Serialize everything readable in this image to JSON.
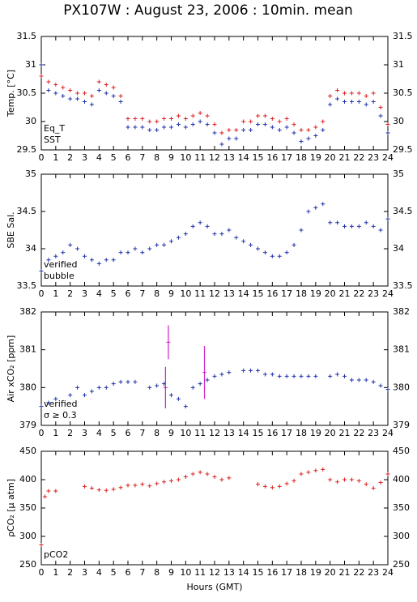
{
  "title": "PX107W : August 23, 2006 : 10min. mean",
  "chart_data": [
    {
      "type": "scatter",
      "ylabel": "Temp. [°C]",
      "xlim": [
        0,
        24
      ],
      "xticks": [
        0,
        1,
        2,
        3,
        4,
        5,
        6,
        7,
        8,
        9,
        10,
        11,
        12,
        13,
        14,
        15,
        16,
        17,
        18,
        19,
        20,
        21,
        22,
        23,
        24
      ],
      "ylim": [
        29.5,
        31.5
      ],
      "yticks": [
        29.5,
        30,
        30.5,
        31,
        31.5
      ],
      "series": [
        {
          "name": "Eq_T",
          "color": "#dd2222",
          "x": [
            0,
            0.5,
            1,
            1.5,
            2,
            2.5,
            3,
            3.5,
            4,
            4.5,
            5,
            5.5,
            6,
            6.5,
            7,
            7.5,
            8,
            8.5,
            9,
            9.5,
            10,
            10.5,
            11,
            11.5,
            12,
            12.5,
            13,
            13.5,
            14,
            14.5,
            15,
            15.5,
            16,
            16.5,
            17,
            17.5,
            18,
            18.5,
            19,
            19.5,
            20,
            20.5,
            21,
            21.5,
            22,
            22.5,
            23,
            23.5,
            24
          ],
          "values": [
            30.8,
            30.7,
            30.65,
            30.6,
            30.55,
            30.5,
            30.5,
            30.45,
            30.7,
            30.65,
            30.6,
            30.45,
            30.05,
            30.05,
            30.05,
            30,
            30,
            30.05,
            30.05,
            30.1,
            30.05,
            30.1,
            30.15,
            30.1,
            29.95,
            29.8,
            29.85,
            29.85,
            30,
            30,
            30.1,
            30.1,
            30.05,
            30,
            30.05,
            29.95,
            29.85,
            29.85,
            29.9,
            30,
            30.45,
            30.55,
            30.5,
            30.5,
            30.5,
            30.45,
            30.5,
            30.25,
            29.95
          ]
        },
        {
          "name": "SST",
          "color": "#2233aa",
          "x": [
            0,
            0.5,
            1,
            1.5,
            2,
            2.5,
            3,
            3.5,
            4,
            4.5,
            5,
            5.5,
            6,
            6.5,
            7,
            7.5,
            8,
            8.5,
            9,
            9.5,
            10,
            10.5,
            11,
            11.5,
            12,
            12.5,
            13,
            13.5,
            14,
            14.5,
            15,
            15.5,
            16,
            16.5,
            17,
            17.5,
            18,
            18.5,
            19,
            19.5,
            20,
            20.5,
            21,
            21.5,
            22,
            22.5,
            23,
            23.5,
            24
          ],
          "values": [
            31,
            30.55,
            30.5,
            30.45,
            30.4,
            30.4,
            30.35,
            30.3,
            30.55,
            30.5,
            30.45,
            30.35,
            29.9,
            29.9,
            29.9,
            29.85,
            29.85,
            29.9,
            29.9,
            29.95,
            29.9,
            29.95,
            30,
            29.95,
            29.8,
            29.6,
            29.7,
            29.7,
            29.85,
            29.85,
            29.95,
            29.95,
            29.9,
            29.85,
            29.9,
            29.8,
            29.65,
            29.7,
            29.75,
            29.85,
            30.3,
            30.4,
            30.35,
            30.35,
            30.35,
            30.3,
            30.35,
            30.1,
            29.8
          ]
        }
      ]
    },
    {
      "type": "scatter",
      "ylabel": "SBE Sal.",
      "xlim": [
        0,
        24
      ],
      "xticks": [
        0,
        1,
        2,
        3,
        4,
        5,
        6,
        7,
        8,
        9,
        10,
        11,
        12,
        13,
        14,
        15,
        16,
        17,
        18,
        19,
        20,
        21,
        22,
        23,
        24
      ],
      "ylim": [
        33.5,
        35
      ],
      "yticks": [
        33.5,
        34,
        34.5,
        35
      ],
      "series": [
        {
          "name": "verified",
          "color": "#2233aa",
          "x": [
            0,
            0.5,
            1,
            1.5,
            2,
            2.5,
            3,
            3.5,
            4,
            4.5,
            5,
            5.5,
            6,
            6.5,
            7,
            7.5,
            8,
            8.5,
            9,
            9.5,
            10,
            10.5,
            11,
            11.5,
            12,
            12.5,
            13,
            13.5,
            14,
            14.5,
            15,
            15.5,
            16,
            16.5,
            17,
            17.5,
            18,
            18.5,
            19,
            19.5,
            20,
            20.5,
            21,
            21.5,
            22,
            22.5,
            23,
            23.5,
            24
          ],
          "values": [
            33.7,
            33.85,
            33.9,
            33.95,
            34.05,
            34,
            33.9,
            33.85,
            33.8,
            33.85,
            33.85,
            33.95,
            33.95,
            34,
            33.95,
            34,
            34.05,
            34.05,
            34.1,
            34.15,
            34.2,
            34.3,
            34.35,
            34.3,
            34.2,
            34.2,
            34.25,
            34.15,
            34.1,
            34.05,
            34,
            33.95,
            33.9,
            33.9,
            33.95,
            34.05,
            34.25,
            34.5,
            34.55,
            34.6,
            34.35,
            34.35,
            34.3,
            34.3,
            34.3,
            34.35,
            34.3,
            34.25,
            34.4
          ]
        },
        {
          "name": "bubble",
          "color": "#cc22cc",
          "x": [],
          "values": []
        }
      ]
    },
    {
      "type": "scatter",
      "ylabel": "Air xCO₂ [ppm]",
      "xlim": [
        0,
        24
      ],
      "xticks": [
        0,
        1,
        2,
        3,
        4,
        5,
        6,
        7,
        8,
        9,
        10,
        11,
        12,
        13,
        14,
        15,
        16,
        17,
        18,
        19,
        20,
        21,
        22,
        23,
        24
      ],
      "ylim": [
        379,
        382
      ],
      "yticks": [
        379,
        380,
        381,
        382
      ],
      "series": [
        {
          "name": "verified",
          "color": "#2233aa",
          "x": [
            0,
            0.5,
            1,
            1.5,
            2,
            2.5,
            3,
            3.5,
            4,
            4.5,
            5,
            5.5,
            6,
            6.5,
            7,
            7.5,
            8,
            8.5,
            9,
            9.5,
            10,
            10.5,
            11,
            11.5,
            12,
            12.5,
            13,
            13.5,
            14,
            14.5,
            15,
            15.5,
            16,
            16.5,
            17,
            17.5,
            18,
            18.5,
            19,
            19.5,
            20,
            20.5,
            21,
            21.5,
            22,
            22.5,
            23,
            23.5,
            24
          ],
          "values": [
            379.5,
            379.6,
            379.7,
            null,
            379.8,
            380,
            379.8,
            379.9,
            380,
            380,
            380.1,
            380.15,
            380.15,
            380.15,
            null,
            380,
            380.05,
            380.1,
            379.8,
            379.7,
            379.5,
            380,
            380.1,
            380.2,
            380.3,
            380.35,
            380.4,
            null,
            380.45,
            380.45,
            380.45,
            380.35,
            380.35,
            380.3,
            380.3,
            380.3,
            380.3,
            380.3,
            380.3,
            null,
            380.3,
            380.35,
            380.3,
            380.2,
            380.2,
            380.2,
            380.15,
            380.05,
            379.95
          ]
        },
        {
          "name": "σ ≥ 0.3",
          "color": "#cc22cc",
          "x": [
            8.6,
            8.8,
            11.3
          ],
          "values": [
            380,
            381.2,
            380.4
          ],
          "errors": [
            0.55,
            0.45,
            0.7
          ]
        }
      ]
    },
    {
      "type": "scatter",
      "ylabel": "ρCO₂ [μ atm]",
      "xlabel": "Hours (GMT)",
      "xlim": [
        0,
        24
      ],
      "xticks": [
        0,
        1,
        2,
        3,
        4,
        5,
        6,
        7,
        8,
        9,
        10,
        11,
        12,
        13,
        14,
        15,
        16,
        17,
        18,
        19,
        20,
        21,
        22,
        23,
        24
      ],
      "ylim": [
        250,
        450
      ],
      "yticks": [
        250,
        300,
        350,
        400,
        450
      ],
      "series": [
        {
          "name": "pCO2",
          "color": "#dd2222",
          "x": [
            0,
            0.25,
            0.5,
            1,
            3,
            3.5,
            4,
            4.5,
            5,
            5.5,
            6,
            6.5,
            7,
            7.5,
            8,
            8.5,
            9,
            9.5,
            10,
            10.5,
            11,
            11.5,
            12,
            12.5,
            13,
            15,
            15.5,
            16,
            16.5,
            17,
            17.5,
            18,
            18.5,
            19,
            19.5,
            20,
            20.5,
            21,
            21.5,
            22,
            22.5,
            23,
            23.5,
            24
          ],
          "values": [
            285,
            370,
            380,
            380,
            388,
            385,
            382,
            381,
            383,
            386,
            390,
            390,
            392,
            389,
            393,
            396,
            398,
            400,
            405,
            410,
            413,
            410,
            405,
            400,
            403,
            392,
            388,
            386,
            388,
            393,
            398,
            410,
            413,
            416,
            418,
            400,
            396,
            400,
            400,
            398,
            392,
            385,
            395,
            410
          ]
        }
      ]
    }
  ]
}
